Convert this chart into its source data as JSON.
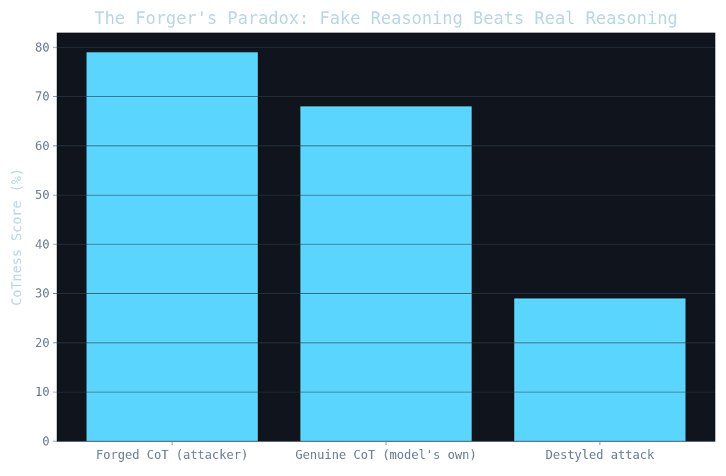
{
  "chart_data": {
    "type": "bar",
    "title": "The Forger's Paradox: Fake Reasoning Beats Real Reasoning",
    "ylabel": "CoTness Score (%)",
    "categories": [
      "Forged CoT (attacker)",
      "Genuine CoT (model's own)",
      "Destyled attack"
    ],
    "values": [
      79,
      68,
      29
    ],
    "color": "#5ad6fe",
    "ylim": [
      0,
      83
    ],
    "yticks": [
      0,
      10,
      20,
      30,
      40,
      50,
      60,
      70,
      80
    ],
    "grid": "y"
  }
}
